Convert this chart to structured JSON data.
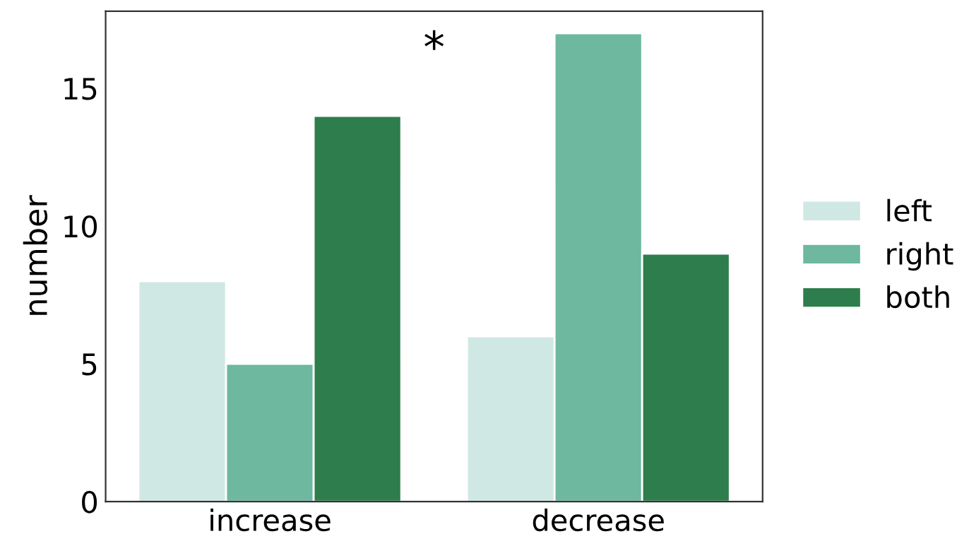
{
  "chart_data": {
    "type": "bar",
    "ylabel": "number",
    "categories": [
      "increase",
      "decrease"
    ],
    "series": [
      {
        "name": "left",
        "color": "#cfe8e3",
        "values": [
          8,
          6
        ]
      },
      {
        "name": "right",
        "color": "#6db89f",
        "values": [
          5,
          17
        ]
      },
      {
        "name": "both",
        "color": "#2e7d4c",
        "values": [
          14,
          9
        ]
      }
    ],
    "ylim": [
      0,
      17.8
    ],
    "yticks": [
      0,
      5,
      10,
      15
    ],
    "grid": false,
    "legend": "right",
    "annotations": [
      "*"
    ]
  }
}
